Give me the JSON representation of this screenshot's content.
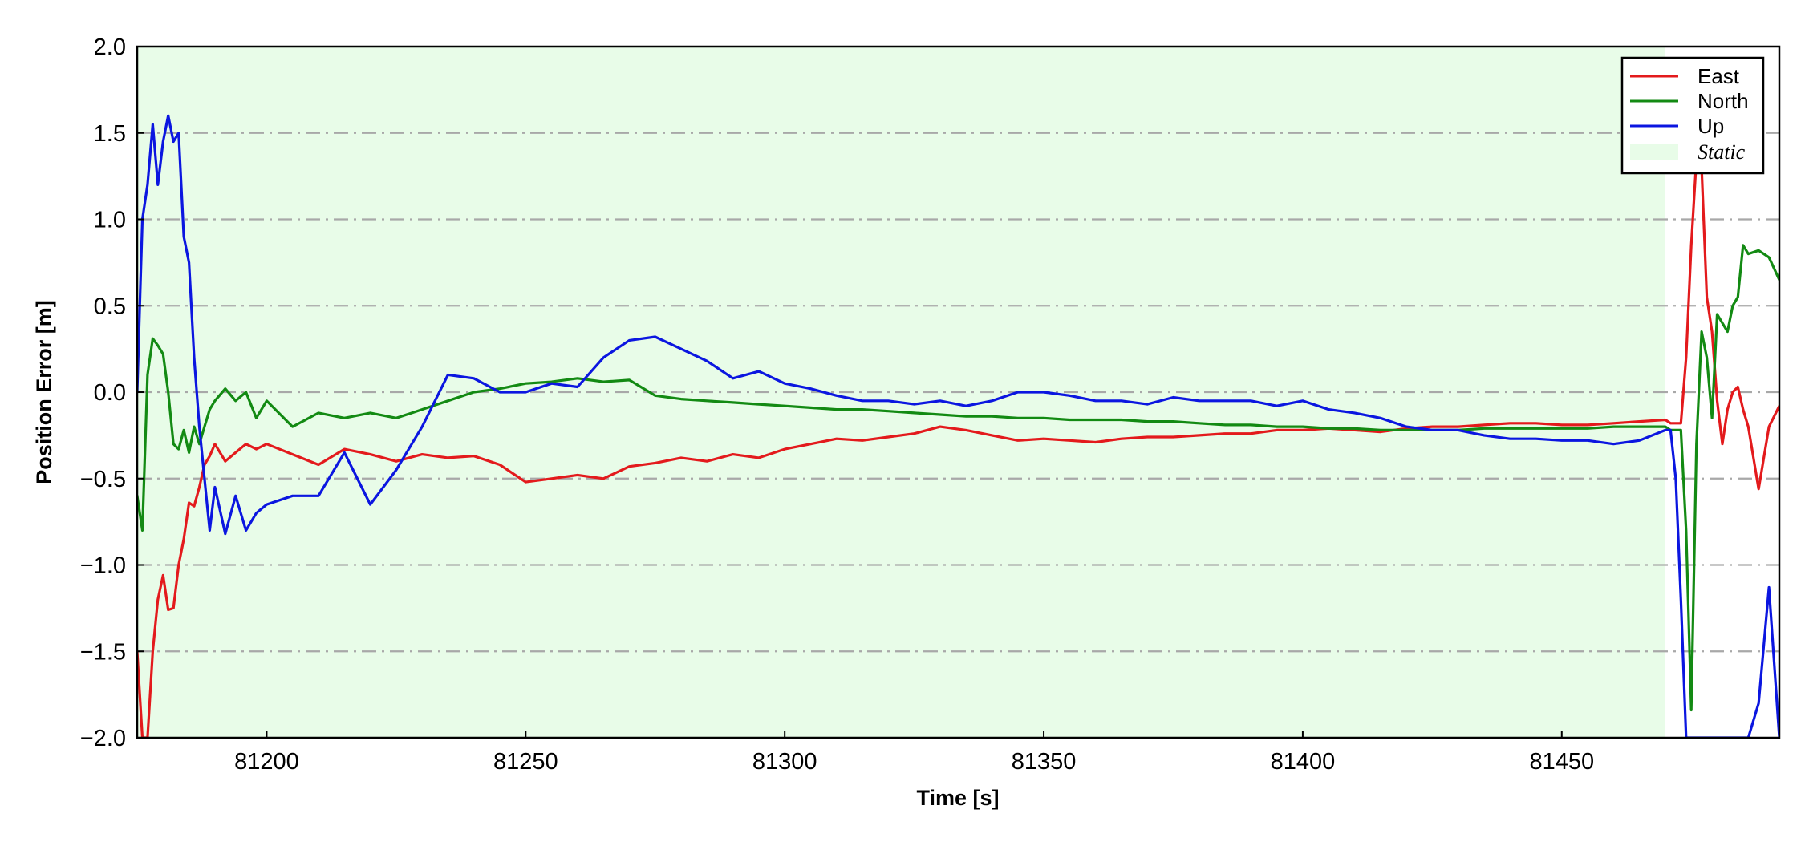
{
  "chart_data": {
    "type": "line",
    "title": "",
    "xlabel": "Time [s]",
    "ylabel": "Position Error [m]",
    "xlim": [
      81175,
      81492
    ],
    "ylim": [
      -2.0,
      2.0
    ],
    "x_ticks": [
      81200,
      81250,
      81300,
      81350,
      81400,
      81450
    ],
    "x_tick_labels": [
      "81200",
      "81250",
      "81300",
      "81350",
      "81400",
      "81450"
    ],
    "y_ticks": [
      -2.0,
      -1.5,
      -1.0,
      -0.5,
      0.0,
      0.5,
      1.0,
      1.5,
      2.0
    ],
    "y_tick_labels": [
      "−2.0",
      "−1.5",
      "−1.0",
      "−0.5",
      "0.0",
      "0.5",
      "1.0",
      "1.5",
      "2.0"
    ],
    "grid": "horizontal dash-dot",
    "legend_position": "top-right",
    "shaded_region": {
      "label": "Static",
      "x": [
        81175,
        81470
      ],
      "color": "#e8fce8"
    },
    "series": [
      {
        "name": "East",
        "color": "#e31a1c",
        "x": [
          81175,
          81176,
          81177,
          81178,
          81179,
          81180,
          81181,
          81182,
          81183,
          81184,
          81185,
          81186,
          81187,
          81188,
          81189,
          81190,
          81192,
          81194,
          81196,
          81198,
          81200,
          81205,
          81210,
          81215,
          81220,
          81225,
          81230,
          81235,
          81240,
          81245,
          81250,
          81255,
          81260,
          81265,
          81270,
          81275,
          81280,
          81285,
          81290,
          81295,
          81300,
          81305,
          81310,
          81315,
          81320,
          81325,
          81330,
          81335,
          81340,
          81345,
          81350,
          81355,
          81360,
          81365,
          81370,
          81375,
          81380,
          81385,
          81390,
          81395,
          81400,
          81405,
          81410,
          81415,
          81420,
          81425,
          81430,
          81435,
          81440,
          81445,
          81450,
          81455,
          81460,
          81465,
          81470,
          81471,
          81472,
          81473,
          81474,
          81475,
          81476,
          81477,
          81478,
          81479,
          81480,
          81481,
          81482,
          81483,
          81484,
          81485,
          81486,
          81488,
          81490,
          81492
        ],
        "values": [
          -1.5,
          -2.0,
          -2.0,
          -1.5,
          -1.2,
          -1.06,
          -1.26,
          -1.25,
          -1.0,
          -0.85,
          -0.64,
          -0.66,
          -0.55,
          -0.42,
          -0.37,
          -0.3,
          -0.4,
          -0.35,
          -0.3,
          -0.33,
          -0.3,
          -0.36,
          -0.42,
          -0.33,
          -0.36,
          -0.4,
          -0.36,
          -0.38,
          -0.37,
          -0.42,
          -0.52,
          -0.5,
          -0.48,
          -0.5,
          -0.43,
          -0.41,
          -0.38,
          -0.4,
          -0.36,
          -0.38,
          -0.33,
          -0.3,
          -0.27,
          -0.28,
          -0.26,
          -0.24,
          -0.2,
          -0.22,
          -0.25,
          -0.28,
          -0.27,
          -0.28,
          -0.29,
          -0.27,
          -0.26,
          -0.26,
          -0.25,
          -0.24,
          -0.24,
          -0.22,
          -0.22,
          -0.21,
          -0.22,
          -0.23,
          -0.21,
          -0.2,
          -0.2,
          -0.19,
          -0.18,
          -0.18,
          -0.19,
          -0.19,
          -0.18,
          -0.17,
          -0.16,
          -0.18,
          -0.18,
          -0.18,
          0.2,
          0.85,
          1.35,
          1.3,
          0.55,
          0.35,
          -0.05,
          -0.3,
          -0.1,
          0.0,
          0.03,
          -0.1,
          -0.2,
          -0.56,
          -0.2,
          -0.08
        ]
      },
      {
        "name": "North",
        "color": "#138a13",
        "x": [
          81175,
          81176,
          81177,
          81178,
          81179,
          81180,
          81181,
          81182,
          81183,
          81184,
          81185,
          81186,
          81187,
          81188,
          81189,
          81190,
          81192,
          81194,
          81196,
          81198,
          81200,
          81205,
          81210,
          81215,
          81220,
          81225,
          81230,
          81235,
          81240,
          81245,
          81250,
          81255,
          81260,
          81265,
          81270,
          81275,
          81280,
          81285,
          81290,
          81295,
          81300,
          81305,
          81310,
          81315,
          81320,
          81325,
          81330,
          81335,
          81340,
          81345,
          81350,
          81355,
          81360,
          81365,
          81370,
          81375,
          81380,
          81385,
          81390,
          81395,
          81400,
          81405,
          81410,
          81415,
          81420,
          81425,
          81430,
          81435,
          81440,
          81445,
          81450,
          81455,
          81460,
          81465,
          81470,
          81471,
          81472,
          81473,
          81474,
          81475,
          81476,
          81477,
          81478,
          81479,
          81480,
          81481,
          81482,
          81483,
          81484,
          81485,
          81486,
          81488,
          81490,
          81492
        ],
        "values": [
          -0.6,
          -0.8,
          0.1,
          0.31,
          0.27,
          0.22,
          0.0,
          -0.3,
          -0.33,
          -0.22,
          -0.35,
          -0.2,
          -0.3,
          -0.2,
          -0.1,
          -0.05,
          0.02,
          -0.05,
          0.0,
          -0.15,
          -0.05,
          -0.2,
          -0.12,
          -0.15,
          -0.12,
          -0.15,
          -0.1,
          -0.05,
          0.0,
          0.02,
          0.05,
          0.06,
          0.08,
          0.06,
          0.07,
          -0.02,
          -0.04,
          -0.05,
          -0.06,
          -0.07,
          -0.08,
          -0.09,
          -0.1,
          -0.1,
          -0.11,
          -0.12,
          -0.13,
          -0.14,
          -0.14,
          -0.15,
          -0.15,
          -0.16,
          -0.16,
          -0.16,
          -0.17,
          -0.17,
          -0.18,
          -0.19,
          -0.19,
          -0.2,
          -0.2,
          -0.21,
          -0.21,
          -0.22,
          -0.22,
          -0.22,
          -0.22,
          -0.21,
          -0.21,
          -0.21,
          -0.21,
          -0.21,
          -0.2,
          -0.2,
          -0.2,
          -0.22,
          -0.22,
          -0.22,
          -0.8,
          -1.84,
          -0.3,
          0.35,
          0.2,
          -0.15,
          0.45,
          0.4,
          0.35,
          0.5,
          0.55,
          0.85,
          0.8,
          0.82,
          0.78,
          0.65
        ]
      },
      {
        "name": "Up",
        "color": "#0b16e0",
        "x": [
          81175,
          81176,
          81177,
          81178,
          81179,
          81180,
          81181,
          81182,
          81183,
          81184,
          81185,
          81186,
          81187,
          81188,
          81189,
          81190,
          81192,
          81194,
          81196,
          81198,
          81200,
          81205,
          81210,
          81215,
          81220,
          81225,
          81230,
          81235,
          81240,
          81245,
          81250,
          81255,
          81260,
          81265,
          81270,
          81275,
          81280,
          81285,
          81290,
          81295,
          81300,
          81305,
          81310,
          81315,
          81320,
          81325,
          81330,
          81335,
          81340,
          81345,
          81350,
          81355,
          81360,
          81365,
          81370,
          81375,
          81380,
          81385,
          81390,
          81395,
          81400,
          81405,
          81410,
          81415,
          81420,
          81425,
          81430,
          81435,
          81440,
          81445,
          81450,
          81455,
          81460,
          81465,
          81470,
          81471,
          81472,
          81473,
          81474,
          81475,
          81476,
          81477,
          81478,
          81479,
          81480,
          81481,
          81482,
          81483,
          81484,
          81485,
          81486,
          81488,
          81490,
          81492
        ],
        "values": [
          0.0,
          1.0,
          1.2,
          1.55,
          1.2,
          1.45,
          1.6,
          1.45,
          1.5,
          0.9,
          0.75,
          0.2,
          -0.2,
          -0.5,
          -0.8,
          -0.55,
          -0.82,
          -0.6,
          -0.8,
          -0.7,
          -0.65,
          -0.6,
          -0.6,
          -0.35,
          -0.65,
          -0.45,
          -0.2,
          0.1,
          0.08,
          0.0,
          0.0,
          0.05,
          0.03,
          0.2,
          0.3,
          0.32,
          0.25,
          0.18,
          0.08,
          0.12,
          0.05,
          0.02,
          -0.02,
          -0.05,
          -0.05,
          -0.07,
          -0.05,
          -0.08,
          -0.05,
          0.0,
          0.0,
          -0.02,
          -0.05,
          -0.05,
          -0.07,
          -0.03,
          -0.05,
          -0.05,
          -0.05,
          -0.08,
          -0.05,
          -0.1,
          -0.12,
          -0.15,
          -0.2,
          -0.22,
          -0.22,
          -0.25,
          -0.27,
          -0.27,
          -0.28,
          -0.28,
          -0.3,
          -0.28,
          -0.22,
          -0.22,
          -0.5,
          -1.2,
          -2.0,
          -2.0,
          -2.0,
          -2.0,
          -2.0,
          -2.0,
          -2.0,
          -2.0,
          -2.0,
          -2.0,
          -2.0,
          -2.0,
          -2.0,
          -1.8,
          -1.13,
          -2.0
        ]
      }
    ]
  }
}
